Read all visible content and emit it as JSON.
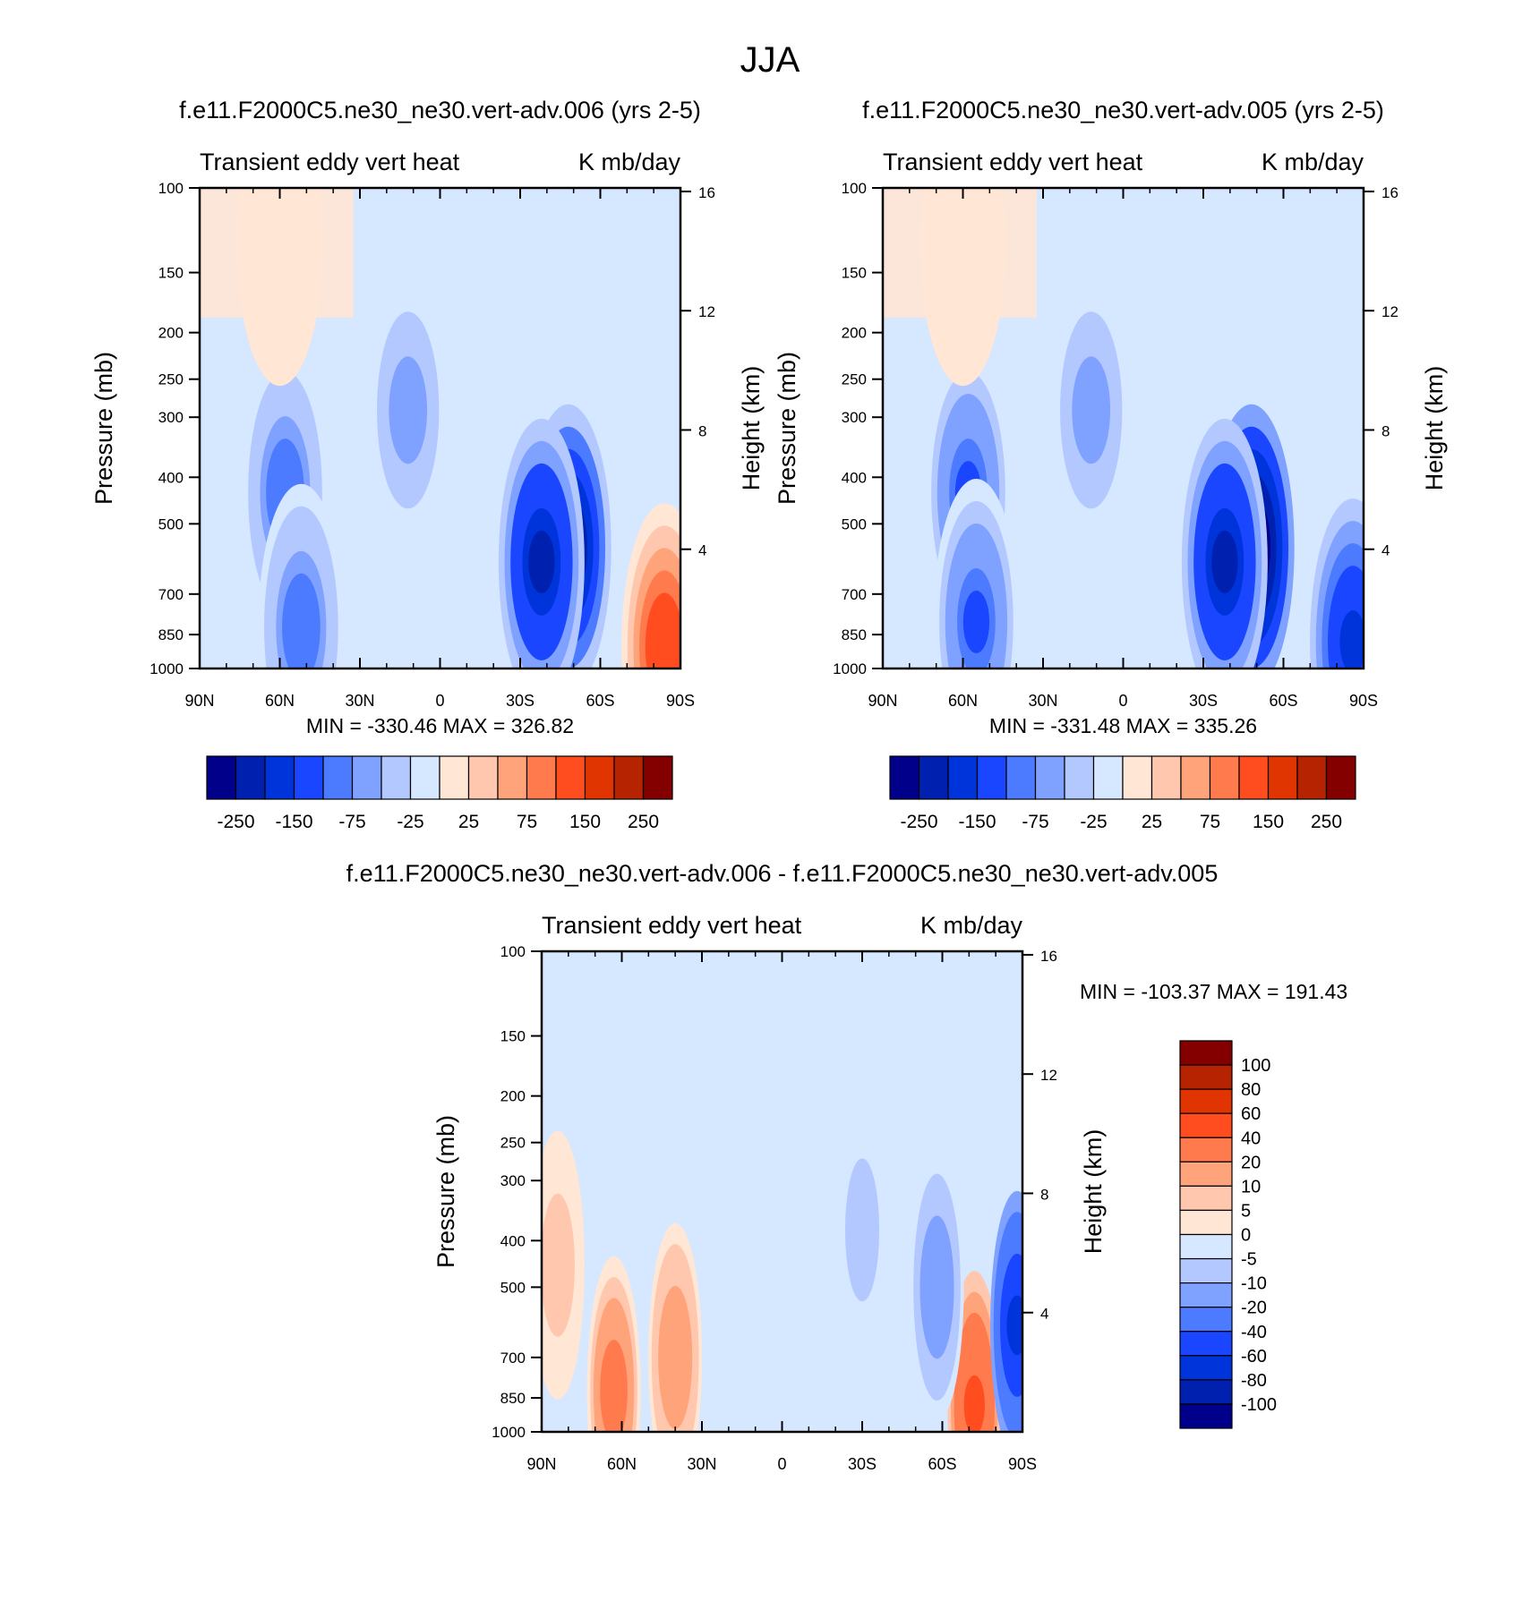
{
  "figure_title": "JJA",
  "chart_data": [
    {
      "type": "heatmap",
      "title": "f.e11.F2000C5.ne30_ne30.vert-adv.006 (yrs 2-5)",
      "subtitle_left": "Transient eddy vert heat",
      "subtitle_right": "K mb/day",
      "ylabel": "Pressure (mb)",
      "ylabel_right": "Height (km)",
      "x_ticks": [
        "90N",
        "60N",
        "30N",
        "0",
        "30S",
        "60S",
        "90S"
      ],
      "y_ticks": [
        "100",
        "150",
        "200",
        "250",
        "300",
        "400",
        "500",
        "700",
        "850",
        "1000"
      ],
      "y_ticks_right": [
        "16",
        "12",
        "8",
        "4"
      ],
      "stats": "MIN = -330.46  MAX = 326.82",
      "colorbar": {
        "orientation": "horizontal",
        "labels": [
          "-250",
          "-150",
          "-75",
          "-25",
          "25",
          "75",
          "150",
          "250"
        ],
        "colors": [
          "#00008a",
          "#0021b0",
          "#0034db",
          "#1a46ff",
          "#4d7bff",
          "#7fa1ff",
          "#b3c8ff",
          "#d6e8ff",
          "#ffe6d5",
          "#ffc7ad",
          "#ffa37a",
          "#ff7a4d",
          "#ff4d20",
          "#e03500",
          "#b52300",
          "#840000"
        ]
      },
      "features": [
        {
          "lat": -48,
          "p": 560,
          "value": -280
        },
        {
          "lat": -38,
          "p": 600,
          "value": -200
        },
        {
          "lat": 58,
          "p": 430,
          "value": -90
        },
        {
          "lat": 52,
          "p": 820,
          "value": -90
        },
        {
          "lat": 12,
          "p": 290,
          "value": -60
        },
        {
          "lat": 60,
          "p": 130,
          "value": 15
        },
        {
          "lat": -84,
          "p": 900,
          "value": 150
        }
      ]
    },
    {
      "type": "heatmap",
      "title": "f.e11.F2000C5.ne30_ne30.vert-adv.005 (yrs 2-5)",
      "subtitle_left": "Transient eddy vert heat",
      "subtitle_right": "K mb/day",
      "ylabel": "Pressure (mb)",
      "ylabel_right": "Height (km)",
      "x_ticks": [
        "90N",
        "60N",
        "30N",
        "0",
        "30S",
        "60S",
        "90S"
      ],
      "y_ticks": [
        "100",
        "150",
        "200",
        "250",
        "300",
        "400",
        "500",
        "700",
        "850",
        "1000"
      ],
      "y_ticks_right": [
        "16",
        "12",
        "8",
        "4"
      ],
      "stats": "MIN = -331.48  MAX = 335.26",
      "colorbar": {
        "orientation": "horizontal",
        "labels": [
          "-250",
          "-150",
          "-75",
          "-25",
          "25",
          "75",
          "150",
          "250"
        ],
        "colors": [
          "#00008a",
          "#0021b0",
          "#0034db",
          "#1a46ff",
          "#4d7bff",
          "#7fa1ff",
          "#b3c8ff",
          "#d6e8ff",
          "#ffe6d5",
          "#ffc7ad",
          "#ffa37a",
          "#ff7a4d",
          "#ff4d20",
          "#e03500",
          "#b52300",
          "#840000"
        ]
      },
      "features": [
        {
          "lat": -48,
          "p": 560,
          "value": -300
        },
        {
          "lat": -38,
          "p": 600,
          "value": -210
        },
        {
          "lat": 58,
          "p": 430,
          "value": -100
        },
        {
          "lat": 55,
          "p": 800,
          "value": -110
        },
        {
          "lat": 12,
          "p": 290,
          "value": -60
        },
        {
          "lat": 60,
          "p": 130,
          "value": 15
        },
        {
          "lat": -86,
          "p": 880,
          "value": -150
        }
      ]
    },
    {
      "type": "heatmap",
      "title": "f.e11.F2000C5.ne30_ne30.vert-adv.006 - f.e11.F2000C5.ne30_ne30.vert-adv.005",
      "subtitle_left": "Transient eddy vert heat",
      "subtitle_right": "K mb/day",
      "ylabel": "Pressure (mb)",
      "ylabel_right": "Height (km)",
      "x_ticks": [
        "90N",
        "60N",
        "30N",
        "0",
        "30S",
        "60S",
        "90S"
      ],
      "y_ticks": [
        "100",
        "150",
        "200",
        "250",
        "300",
        "400",
        "500",
        "700",
        "850",
        "1000"
      ],
      "y_ticks_right": [
        "16",
        "12",
        "8",
        "4"
      ],
      "stats": "MIN = -103.37  MAX = 191.43",
      "colorbar": {
        "orientation": "vertical",
        "labels": [
          "100",
          "80",
          "60",
          "40",
          "20",
          "10",
          "5",
          "0",
          "-5",
          "-10",
          "-20",
          "-40",
          "-60",
          "-80",
          "-100"
        ],
        "colors": [
          "#840000",
          "#b52300",
          "#e03500",
          "#ff4d20",
          "#ff7a4d",
          "#ffa37a",
          "#ffc7ad",
          "#ffe6d5",
          "#d6e8ff",
          "#b3c8ff",
          "#7fa1ff",
          "#4d7bff",
          "#1a46ff",
          "#0034db",
          "#0021b0",
          "#00008a"
        ]
      },
      "features": [
        {
          "lat": -72,
          "p": 880,
          "value": 45
        },
        {
          "lat": 40,
          "p": 700,
          "value": 18
        },
        {
          "lat": 63,
          "p": 820,
          "value": 25
        },
        {
          "lat": 84,
          "p": 450,
          "value": 10
        },
        {
          "lat": -88,
          "p": 600,
          "value": -60
        },
        {
          "lat": -58,
          "p": 500,
          "value": -15
        },
        {
          "lat": -30,
          "p": 380,
          "value": -8
        }
      ]
    }
  ]
}
